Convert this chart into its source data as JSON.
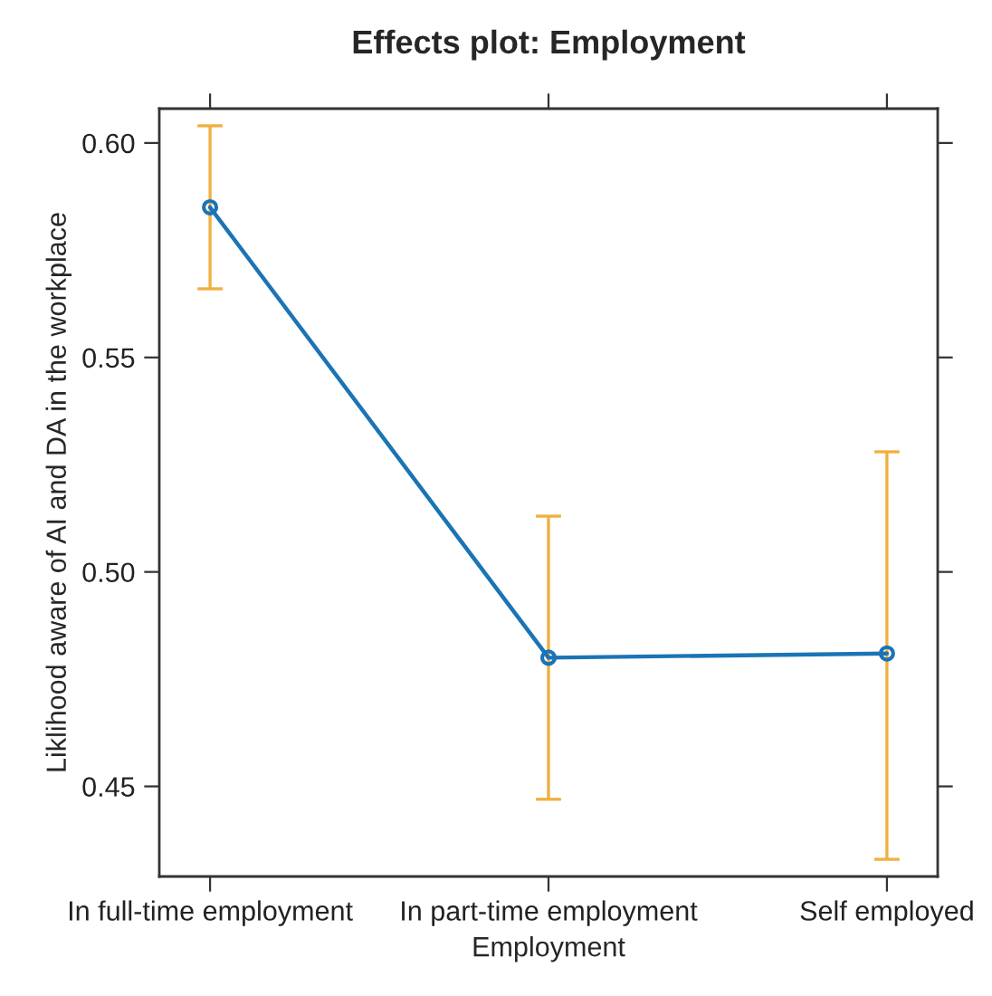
{
  "chart_data": {
    "type": "line",
    "title": "Effects plot: Employment",
    "xlabel": "Employment",
    "ylabel": "Liklihood aware of AI and DA in the workplace",
    "categories": [
      "In full-time employment",
      "In part-time employment",
      "Self employed"
    ],
    "series": [
      {
        "color": "#1a74b5",
        "values": [
          0.585,
          0.48,
          0.481
        ],
        "errors": [
          [
            0.566,
            0.604
          ],
          [
            0.447,
            0.513
          ],
          [
            0.433,
            0.528
          ]
        ]
      }
    ],
    "ylim": [
      0.429,
      0.608
    ],
    "yticks": [
      0.45,
      {
        "value": 0.5,
        "label": "0.50"
      },
      0.55,
      {
        "value": 0.6,
        "label": "0.60"
      }
    ],
    "grid": false,
    "marker": "circle",
    "line_style": "solid"
  }
}
